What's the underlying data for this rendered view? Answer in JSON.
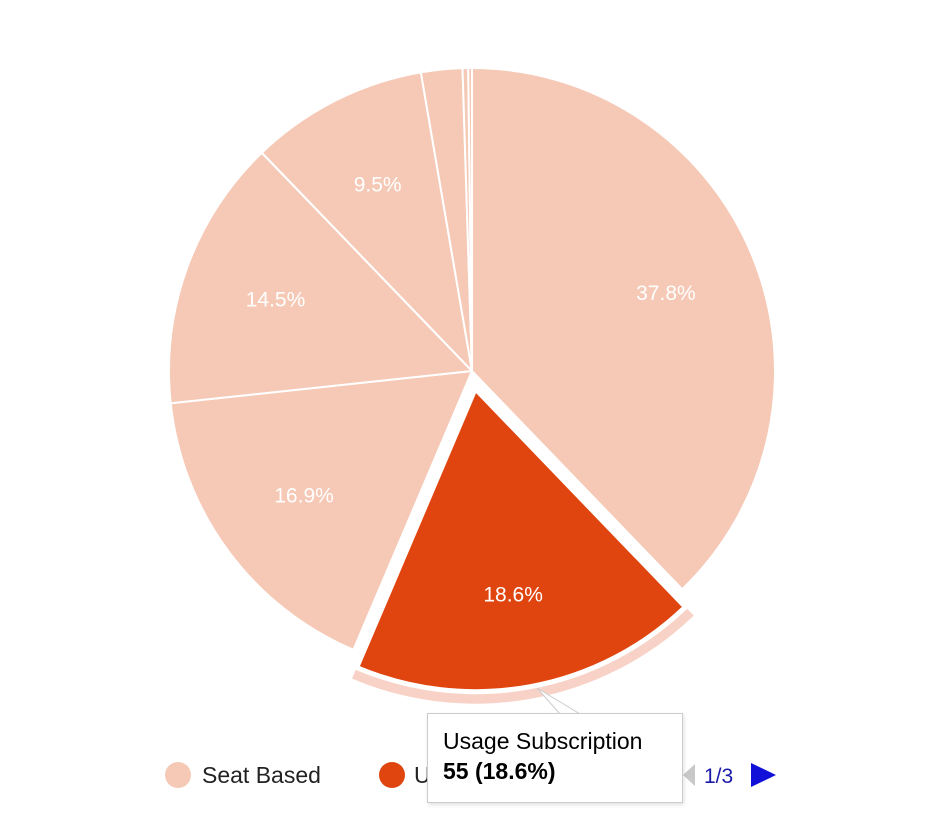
{
  "chart_data": {
    "type": "pie",
    "slices": [
      {
        "value": 37.8,
        "label": "37.8%",
        "highlighted": false
      },
      {
        "value": 18.6,
        "label": "18.6%",
        "highlighted": true
      },
      {
        "value": 16.9,
        "label": "16.9%",
        "highlighted": false
      },
      {
        "value": 14.5,
        "label": "14.5%",
        "highlighted": false
      },
      {
        "value": 9.5,
        "label": "9.5%",
        "highlighted": false
      },
      {
        "value": 2.2,
        "label": "",
        "highlighted": false
      },
      {
        "value": 0.3,
        "label": "",
        "highlighted": false
      },
      {
        "value": 0.2,
        "label": "",
        "highlighted": false
      }
    ],
    "legend": {
      "position": "bottom",
      "items": [
        {
          "name": "Seat Based",
          "color": "#f5c9b6"
        },
        {
          "name": "U",
          "color": "#e04510"
        }
      ],
      "page_indicator": "1/3"
    },
    "colors": {
      "muted": "#f5c9b6",
      "highlight": "#e04510",
      "halo": "#f8d2c6"
    }
  },
  "tooltip": {
    "title": "Usage Subscription",
    "value": "55 (18.6%)"
  }
}
